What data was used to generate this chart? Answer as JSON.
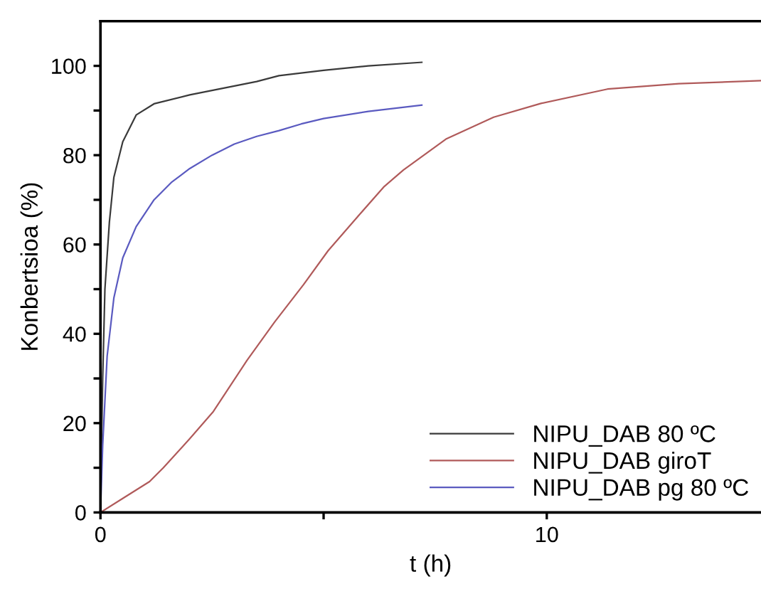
{
  "chart_data": {
    "type": "line",
    "xlabel": "t (h)",
    "ylabel": "Konbertsioa (%)",
    "xlim": [
      0,
      14.8
    ],
    "ylim": [
      0,
      110
    ],
    "xticks": [
      0,
      {
        "value": 5,
        "label": null
      },
      10
    ],
    "yticks": [
      0,
      {
        "value": 10,
        "label": null
      },
      20,
      {
        "value": 30,
        "label": null
      },
      40,
      {
        "value": 50,
        "label": null
      },
      60,
      {
        "value": 70,
        "label": null
      },
      80,
      {
        "value": 90,
        "label": null
      },
      100
    ],
    "grid": false,
    "legend": "bottom right",
    "marker": "none",
    "line_style": "solid",
    "series": [
      {
        "name": "NIPU_DAB 80 ºC",
        "color": "#3a3a3a",
        "x": [
          0,
          0.05,
          0.1,
          0.2,
          0.3,
          0.5,
          0.8,
          1.2,
          2,
          3,
          3.5,
          4,
          5,
          6,
          7.2
        ],
        "values": [
          0,
          30,
          50,
          65,
          75,
          83,
          89,
          91.5,
          93.5,
          95.5,
          96.5,
          97.8,
          99,
          100,
          100.8
        ]
      },
      {
        "name": "NIPU_DAB giroT",
        "color": "#b05a5a",
        "x": [
          0,
          0.51,
          1.1,
          1.41,
          2.0,
          2.53,
          3.28,
          3.9,
          4.55,
          5.1,
          5.83,
          6.36,
          6.79,
          7.74,
          8.81,
          9.87,
          11.36,
          12.96,
          14.8
        ],
        "values": [
          0,
          3.2,
          6.9,
          10,
          16.5,
          22.6,
          34,
          42.6,
          51,
          58.6,
          67,
          73,
          76.7,
          83.6,
          88.5,
          91.6,
          94.8,
          96,
          96.7
        ]
      },
      {
        "name": "NIPU_DAB pg 80 ºC",
        "color": "#5a5ac0",
        "x": [
          0,
          0.05,
          0.15,
          0.3,
          0.5,
          0.8,
          1.2,
          1.6,
          2,
          2.5,
          3,
          3.5,
          4,
          4.5,
          5,
          6,
          7.2
        ],
        "values": [
          0,
          15,
          35,
          48,
          57,
          64,
          70,
          74,
          77,
          80,
          82.5,
          84.2,
          85.5,
          87,
          88.2,
          89.8,
          91.2
        ]
      }
    ]
  }
}
